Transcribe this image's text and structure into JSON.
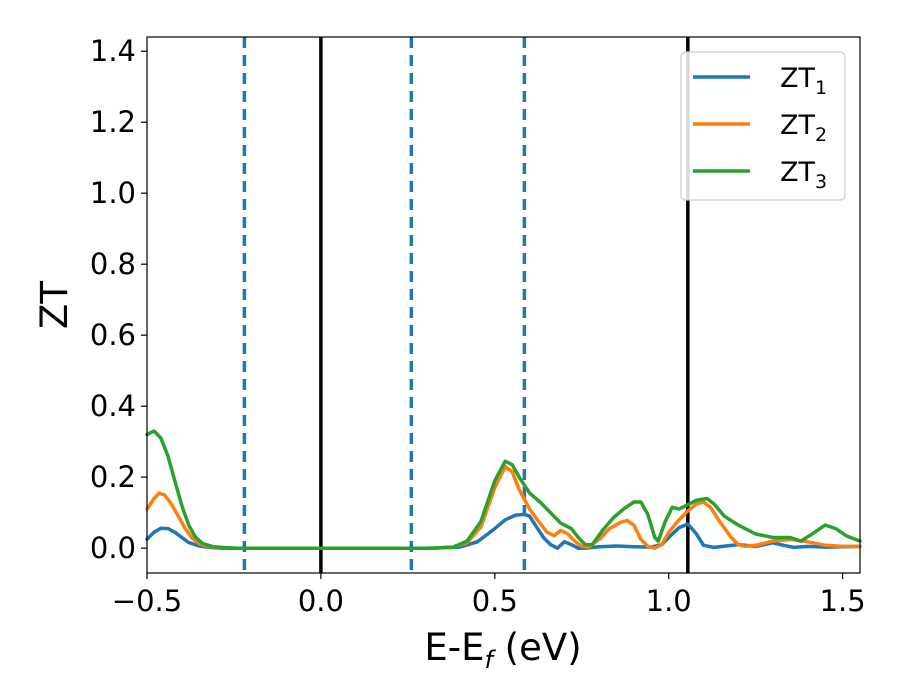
{
  "chart_data": {
    "type": "line",
    "xlabel": "E-E",
    "xlabel_sub": "f",
    "xlabel_unit": " (eV)",
    "ylabel": "ZT",
    "xlim": [
      -0.5,
      1.55
    ],
    "ylim": [
      -0.07,
      1.44
    ],
    "xticks": [
      -0.5,
      0.0,
      0.5,
      1.0,
      1.5
    ],
    "xtick_labels": [
      "−0.5",
      "0.0",
      "0.5",
      "1.0",
      "1.5"
    ],
    "yticks": [
      0.0,
      0.2,
      0.4,
      0.6,
      0.8,
      1.0,
      1.2,
      1.4
    ],
    "ytick_labels": [
      "0.0",
      "0.2",
      "0.4",
      "0.6",
      "0.8",
      "1.0",
      "1.2",
      "1.4"
    ],
    "grid": false,
    "legend_position": "top-right",
    "vlines_solid": [
      0.0,
      1.055
    ],
    "vlines_dashed": [
      -0.22,
      0.26,
      0.585
    ],
    "series": [
      {
        "name": "ZT",
        "sub": "1",
        "color": "#1f77b4",
        "points": [
          [
            -0.5,
            0.025
          ],
          [
            -0.48,
            0.045
          ],
          [
            -0.46,
            0.056
          ],
          [
            -0.44,
            0.055
          ],
          [
            -0.42,
            0.045
          ],
          [
            -0.4,
            0.03
          ],
          [
            -0.38,
            0.016
          ],
          [
            -0.35,
            0.006
          ],
          [
            -0.32,
            0.002
          ],
          [
            -0.28,
            0.0
          ],
          [
            0.0,
            0.0
          ],
          [
            0.3,
            0.0
          ],
          [
            0.4,
            0.003
          ],
          [
            0.45,
            0.018
          ],
          [
            0.5,
            0.055
          ],
          [
            0.53,
            0.08
          ],
          [
            0.56,
            0.093
          ],
          [
            0.585,
            0.095
          ],
          [
            0.6,
            0.09
          ],
          [
            0.62,
            0.06
          ],
          [
            0.64,
            0.03
          ],
          [
            0.66,
            0.01
          ],
          [
            0.68,
            0.0
          ],
          [
            0.7,
            0.018
          ],
          [
            0.72,
            0.01
          ],
          [
            0.74,
            0.0
          ],
          [
            0.76,
            0.0
          ],
          [
            0.8,
            0.004
          ],
          [
            0.85,
            0.006
          ],
          [
            0.9,
            0.004
          ],
          [
            0.95,
            0.003
          ],
          [
            0.98,
            0.01
          ],
          [
            1.0,
            0.03
          ],
          [
            1.03,
            0.058
          ],
          [
            1.055,
            0.068
          ],
          [
            1.08,
            0.04
          ],
          [
            1.1,
            0.008
          ],
          [
            1.13,
            0.002
          ],
          [
            1.2,
            0.01
          ],
          [
            1.25,
            0.005
          ],
          [
            1.3,
            0.015
          ],
          [
            1.33,
            0.008
          ],
          [
            1.36,
            0.002
          ],
          [
            1.4,
            0.005
          ],
          [
            1.45,
            0.003
          ],
          [
            1.5,
            0.004
          ],
          [
            1.55,
            0.005
          ]
        ]
      },
      {
        "name": "ZT",
        "sub": "2",
        "color": "#ff7f0e",
        "points": [
          [
            -0.5,
            0.11
          ],
          [
            -0.48,
            0.14
          ],
          [
            -0.465,
            0.155
          ],
          [
            -0.45,
            0.15
          ],
          [
            -0.43,
            0.125
          ],
          [
            -0.41,
            0.09
          ],
          [
            -0.39,
            0.055
          ],
          [
            -0.37,
            0.028
          ],
          [
            -0.35,
            0.012
          ],
          [
            -0.32,
            0.004
          ],
          [
            -0.28,
            0.001
          ],
          [
            -0.24,
            0.0
          ],
          [
            0.0,
            0.0
          ],
          [
            0.32,
            0.0
          ],
          [
            0.38,
            0.003
          ],
          [
            0.42,
            0.015
          ],
          [
            0.46,
            0.06
          ],
          [
            0.5,
            0.17
          ],
          [
            0.53,
            0.23
          ],
          [
            0.55,
            0.215
          ],
          [
            0.57,
            0.165
          ],
          [
            0.6,
            0.11
          ],
          [
            0.63,
            0.07
          ],
          [
            0.65,
            0.045
          ],
          [
            0.67,
            0.035
          ],
          [
            0.69,
            0.05
          ],
          [
            0.71,
            0.04
          ],
          [
            0.73,
            0.02
          ],
          [
            0.75,
            0.005
          ],
          [
            0.77,
            0.003
          ],
          [
            0.8,
            0.025
          ],
          [
            0.83,
            0.055
          ],
          [
            0.86,
            0.072
          ],
          [
            0.88,
            0.078
          ],
          [
            0.9,
            0.065
          ],
          [
            0.92,
            0.025
          ],
          [
            0.94,
            0.005
          ],
          [
            0.96,
            0.0
          ],
          [
            0.98,
            0.01
          ],
          [
            1.0,
            0.045
          ],
          [
            1.03,
            0.08
          ],
          [
            1.055,
            0.105
          ],
          [
            1.08,
            0.125
          ],
          [
            1.1,
            0.13
          ],
          [
            1.12,
            0.115
          ],
          [
            1.15,
            0.07
          ],
          [
            1.18,
            0.03
          ],
          [
            1.2,
            0.01
          ],
          [
            1.22,
            0.005
          ],
          [
            1.25,
            0.008
          ],
          [
            1.3,
            0.02
          ],
          [
            1.35,
            0.025
          ],
          [
            1.4,
            0.018
          ],
          [
            1.45,
            0.008
          ],
          [
            1.5,
            0.005
          ],
          [
            1.55,
            0.005
          ]
        ]
      },
      {
        "name": "ZT",
        "sub": "3",
        "color": "#2ca02c",
        "points": [
          [
            -0.5,
            0.32
          ],
          [
            -0.48,
            0.33
          ],
          [
            -0.46,
            0.31
          ],
          [
            -0.44,
            0.26
          ],
          [
            -0.42,
            0.19
          ],
          [
            -0.4,
            0.12
          ],
          [
            -0.38,
            0.065
          ],
          [
            -0.36,
            0.03
          ],
          [
            -0.34,
            0.013
          ],
          [
            -0.31,
            0.004
          ],
          [
            -0.27,
            0.001
          ],
          [
            -0.24,
            0.0
          ],
          [
            0.0,
            0.0
          ],
          [
            0.32,
            0.0
          ],
          [
            0.38,
            0.003
          ],
          [
            0.42,
            0.02
          ],
          [
            0.46,
            0.075
          ],
          [
            0.5,
            0.19
          ],
          [
            0.53,
            0.245
          ],
          [
            0.55,
            0.235
          ],
          [
            0.57,
            0.2
          ],
          [
            0.6,
            0.155
          ],
          [
            0.63,
            0.13
          ],
          [
            0.66,
            0.1
          ],
          [
            0.69,
            0.07
          ],
          [
            0.72,
            0.055
          ],
          [
            0.74,
            0.03
          ],
          [
            0.76,
            0.01
          ],
          [
            0.78,
            0.01
          ],
          [
            0.81,
            0.05
          ],
          [
            0.84,
            0.085
          ],
          [
            0.87,
            0.11
          ],
          [
            0.9,
            0.13
          ],
          [
            0.92,
            0.13
          ],
          [
            0.94,
            0.095
          ],
          [
            0.96,
            0.03
          ],
          [
            0.97,
            0.02
          ],
          [
            0.99,
            0.075
          ],
          [
            1.01,
            0.115
          ],
          [
            1.03,
            0.11
          ],
          [
            1.05,
            0.12
          ],
          [
            1.08,
            0.135
          ],
          [
            1.11,
            0.14
          ],
          [
            1.13,
            0.125
          ],
          [
            1.16,
            0.09
          ],
          [
            1.2,
            0.065
          ],
          [
            1.25,
            0.04
          ],
          [
            1.3,
            0.03
          ],
          [
            1.35,
            0.03
          ],
          [
            1.38,
            0.02
          ],
          [
            1.42,
            0.045
          ],
          [
            1.45,
            0.065
          ],
          [
            1.48,
            0.055
          ],
          [
            1.51,
            0.035
          ],
          [
            1.55,
            0.02
          ]
        ]
      }
    ]
  }
}
